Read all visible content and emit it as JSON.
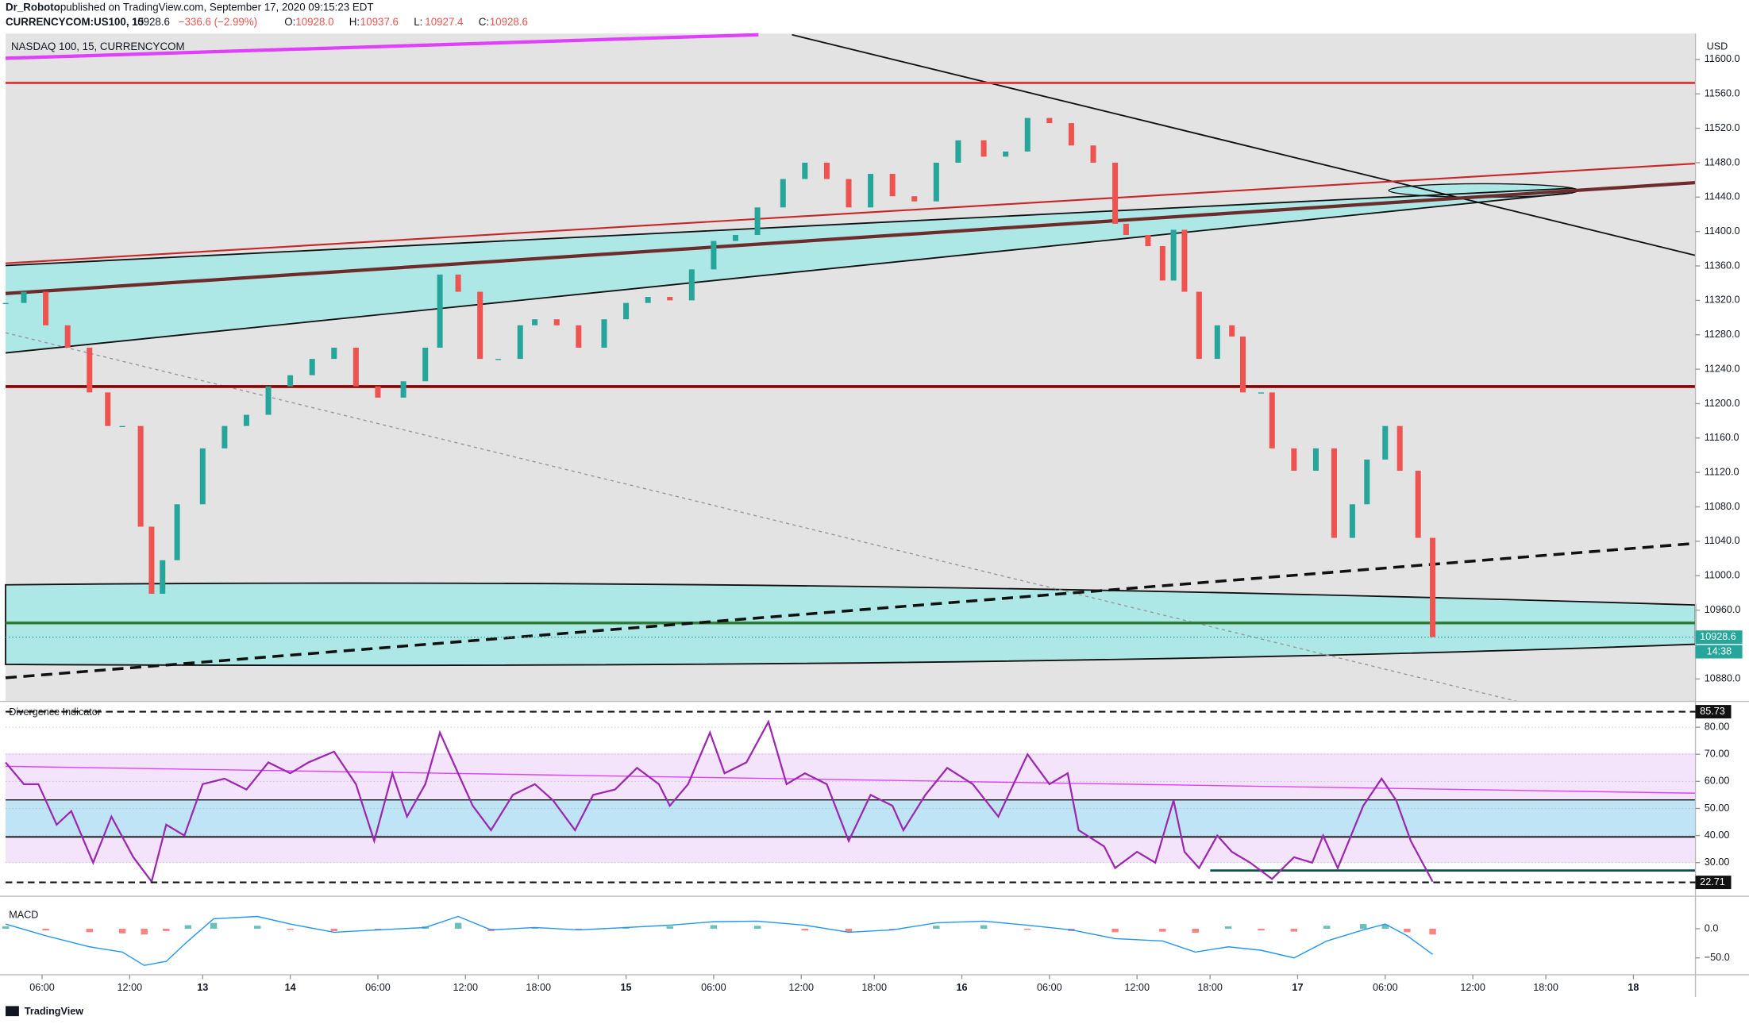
{
  "header": {
    "author": "Dr_Roboto",
    "published": "published on TradingView.com, September 17, 2020 09:15:23 EDT",
    "symbol": "CURRENCYCOM:US100, 15",
    "last": "10928.6",
    "change": "−336.6 (−2.99%)",
    "ohlc": [
      {
        "key": "O:",
        "value": "10928.0"
      },
      {
        "key": "H:",
        "value": "10937.6"
      },
      {
        "key": "L:",
        "value": "10927.4"
      },
      {
        "key": "C:",
        "value": "10928.6"
      }
    ]
  },
  "chart_data": [
    {
      "type": "candlestick",
      "title": "NASDAQ 100, 15, CURRENCYCOM",
      "currency": "USD",
      "x": [
        0,
        5,
        11,
        17,
        23,
        28,
        32,
        37,
        40,
        43,
        47,
        54,
        60,
        66,
        72,
        78,
        84,
        90,
        96,
        102,
        109,
        115,
        119,
        124,
        130,
        135,
        141,
        145,
        151,
        157,
        164,
        170,
        176,
        182,
        188,
        194,
        200,
        206,
        213,
        219,
        225,
        231,
        237,
        243,
        249,
        255,
        261,
        268,
        274,
        280,
        286,
        292,
        298,
        304,
        307,
        313,
        317,
        320,
        323,
        327,
        332,
        336,
        339,
        344,
        347,
        353,
        359,
        364,
        369,
        373,
        378,
        382,
        387,
        391
      ],
      "values": [
        11317,
        11330,
        11291,
        11265,
        11213,
        11174,
        11174,
        11057,
        10979,
        11018,
        11083,
        11148,
        11174,
        11187,
        11220,
        11233,
        11252,
        11265,
        11220,
        11207,
        11226,
        11265,
        11350,
        11330,
        11252,
        11252,
        11291,
        11298,
        11291,
        11265,
        11298,
        11317,
        11324,
        11320,
        11356,
        11389,
        11396,
        11428,
        11461,
        11480,
        11461,
        11428,
        11467,
        11441,
        11435,
        11480,
        11506,
        11487,
        11493,
        11532,
        11526,
        11500,
        11480,
        11409,
        11396,
        11383,
        11343,
        11402,
        11330,
        11252,
        11291,
        11278,
        11213,
        11213,
        11148,
        11122,
        11148,
        11044,
        11083,
        11135,
        11174,
        11122,
        11044,
        10928.6
      ],
      "up_color": "#26a69a",
      "down_color": "#ef5350",
      "xlim": [
        0,
        463
      ],
      "ylim": [
        10854,
        11630
      ],
      "xticks": [
        {
          "value": 10,
          "label": "06:00"
        },
        {
          "value": 34,
          "label": "12:00"
        },
        {
          "value": 54,
          "label": "13"
        },
        {
          "value": 78,
          "label": "14"
        },
        {
          "value": 102,
          "label": "06:00"
        },
        {
          "value": 126,
          "label": "12:00"
        },
        {
          "value": 146,
          "label": "18:00"
        },
        {
          "value": 170,
          "label": "15"
        },
        {
          "value": 194,
          "label": "06:00"
        },
        {
          "value": 218,
          "label": "12:00"
        },
        {
          "value": 238,
          "label": "18:00"
        },
        {
          "value": 262,
          "label": "16"
        },
        {
          "value": 286,
          "label": "06:00"
        },
        {
          "value": 310,
          "label": "12:00"
        },
        {
          "value": 330,
          "label": "18:00"
        },
        {
          "value": 354,
          "label": "17"
        },
        {
          "value": 378,
          "label": "06:00"
        },
        {
          "value": 402,
          "label": "12:00"
        },
        {
          "value": 422,
          "label": "18:00"
        },
        {
          "value": 446,
          "label": "18"
        }
      ],
      "yticks": [
        {
          "value": 11600,
          "label": "11600.0"
        },
        {
          "value": 11560,
          "label": "11560.0"
        },
        {
          "value": 11520,
          "label": "11520.0"
        },
        {
          "value": 11480,
          "label": "11480.0"
        },
        {
          "value": 11440,
          "label": "11440.0"
        },
        {
          "value": 11400,
          "label": "11400.0"
        },
        {
          "value": 11360,
          "label": "11360.0"
        },
        {
          "value": 11320,
          "label": "11320.0"
        },
        {
          "value": 11280,
          "label": "11280.0"
        },
        {
          "value": 11240,
          "label": "11240.0"
        },
        {
          "value": 11200,
          "label": "11200.0"
        },
        {
          "value": 11160,
          "label": "11160.0"
        },
        {
          "value": 11120,
          "label": "11120.0"
        },
        {
          "value": 11080,
          "label": "11080.0"
        },
        {
          "value": 11040,
          "label": "11040.0"
        },
        {
          "value": 11000,
          "label": "11000.0"
        },
        {
          "value": 10960,
          "label": "10960.0"
        },
        {
          "value": 10880,
          "label": "10880.0"
        }
      ],
      "last_price": 10928.6,
      "countdown": "14:38",
      "badge_color": "#26a69a"
    },
    {
      "type": "line",
      "title": "Divergence Indicator",
      "color": "#9c27b0",
      "x": [
        0,
        5,
        9,
        14,
        18,
        24,
        29,
        35,
        40,
        44,
        49,
        54,
        60,
        66,
        72,
        78,
        83,
        90,
        96,
        101,
        106,
        110,
        115,
        119,
        124,
        128,
        133,
        139,
        145,
        150,
        156,
        161,
        167,
        173,
        179,
        182,
        187,
        193,
        197,
        203,
        209,
        214,
        219,
        225,
        231,
        237,
        243,
        246,
        252,
        258,
        265,
        272,
        280,
        286,
        291,
        294,
        301,
        304,
        310,
        315,
        320,
        323,
        327,
        332,
        336,
        341,
        347,
        353,
        358,
        361,
        365,
        372,
        377,
        381,
        385,
        391
      ],
      "values": [
        67,
        59,
        59,
        44,
        49,
        30,
        47,
        32,
        23,
        44,
        40,
        59,
        61,
        57,
        67,
        63,
        67,
        71,
        59,
        38,
        63,
        47,
        59,
        78,
        63,
        51,
        42,
        55,
        59,
        53,
        42,
        55,
        57,
        65,
        59,
        51,
        59,
        78,
        63,
        67,
        82,
        59,
        63,
        59,
        38,
        55,
        51,
        42,
        55,
        65,
        59,
        47,
        70,
        59,
        63,
        42,
        36,
        28,
        34,
        30,
        53,
        34,
        28,
        40,
        34,
        30,
        24,
        32,
        30,
        40,
        28,
        51,
        61,
        53,
        38,
        23
      ],
      "xlim": [
        0,
        463
      ],
      "ylim": [
        18.4,
        87.9
      ],
      "yticks": [
        {
          "value": 80,
          "label": "80.00"
        },
        {
          "value": 70,
          "label": "70.00"
        },
        {
          "value": 60,
          "label": "60.00"
        },
        {
          "value": 50,
          "label": "50.00"
        },
        {
          "value": 40,
          "label": "40.00"
        },
        {
          "value": 30,
          "label": "30.00"
        }
      ],
      "levels": [
        85.73,
        22.71
      ]
    },
    {
      "type": "macd",
      "title": "MACD",
      "color": "#2196f3",
      "x": [
        0,
        11,
        23,
        32,
        38,
        44,
        50,
        57,
        69,
        78,
        90,
        102,
        115,
        124,
        133,
        145,
        157,
        170,
        182,
        194,
        206,
        219,
        231,
        243,
        255,
        268,
        280,
        292,
        304,
        317,
        326,
        335,
        344,
        353,
        362,
        372,
        378,
        384,
        391
      ],
      "values": [
        8,
        -12,
        -31,
        -40,
        -63,
        -56,
        -21,
        17,
        21,
        8,
        -6,
        -2,
        2,
        21,
        -2,
        2,
        -2,
        2,
        6,
        12,
        13,
        6,
        -6,
        -2,
        10,
        13,
        6,
        -2,
        -17,
        -21,
        -40,
        -31,
        -37,
        -50,
        -21,
        -2,
        8,
        -12,
        -44
      ],
      "histogram": [
        4,
        -3,
        -6,
        -8,
        -10,
        -4,
        6,
        10,
        5,
        -2,
        -4,
        -3,
        4,
        10,
        -4,
        2,
        -2,
        3,
        4,
        6,
        5,
        -3,
        -6,
        -2,
        5,
        6,
        -2,
        -4,
        -6,
        -5,
        -7,
        4,
        -3,
        -5,
        5,
        8,
        7,
        -6,
        -10
      ],
      "up_color": "#26a69a",
      "down_color": "#ef5350",
      "xlim": [
        0,
        463
      ],
      "ylim": [
        -82.7,
        46
      ],
      "yticks": [
        {
          "value": 0,
          "label": "0.0"
        },
        {
          "value": -50,
          "label": "−50.0"
        }
      ]
    }
  ],
  "footer": {
    "brand": "TradingView"
  }
}
